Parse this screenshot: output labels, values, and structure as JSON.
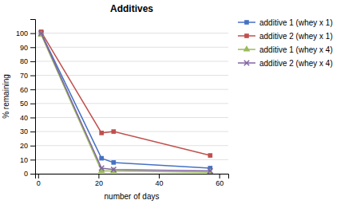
{
  "chart_data": {
    "type": "line",
    "title": "Additives",
    "xlabel": "number of days",
    "ylabel": "% remaining",
    "x": [
      1,
      21,
      25,
      57
    ],
    "xlim": [
      -1,
      63
    ],
    "ylim": [
      0,
      110
    ],
    "xticks": [
      0,
      20,
      40,
      60
    ],
    "yticks": [
      0,
      10,
      20,
      30,
      40,
      50,
      60,
      70,
      80,
      90,
      100
    ],
    "grid": "y",
    "legend": "right",
    "series": [
      {
        "name": "additive 1 (whey x 1)",
        "color": "#4472C4",
        "marker": "square",
        "values": [
          100,
          11,
          8,
          4
        ]
      },
      {
        "name": "additive 2 (whey x 1)",
        "color": "#C0504D",
        "marker": "square",
        "values": [
          101,
          29,
          30,
          13
        ]
      },
      {
        "name": "additive 1 (whey x 4)",
        "color": "#9BBB59",
        "marker": "triangle",
        "values": [
          99,
          2,
          2,
          1
        ]
      },
      {
        "name": "additive 2 (whey x 4)",
        "color": "#8064A2",
        "marker": "x",
        "values": [
          100,
          4,
          3,
          2
        ]
      }
    ]
  }
}
